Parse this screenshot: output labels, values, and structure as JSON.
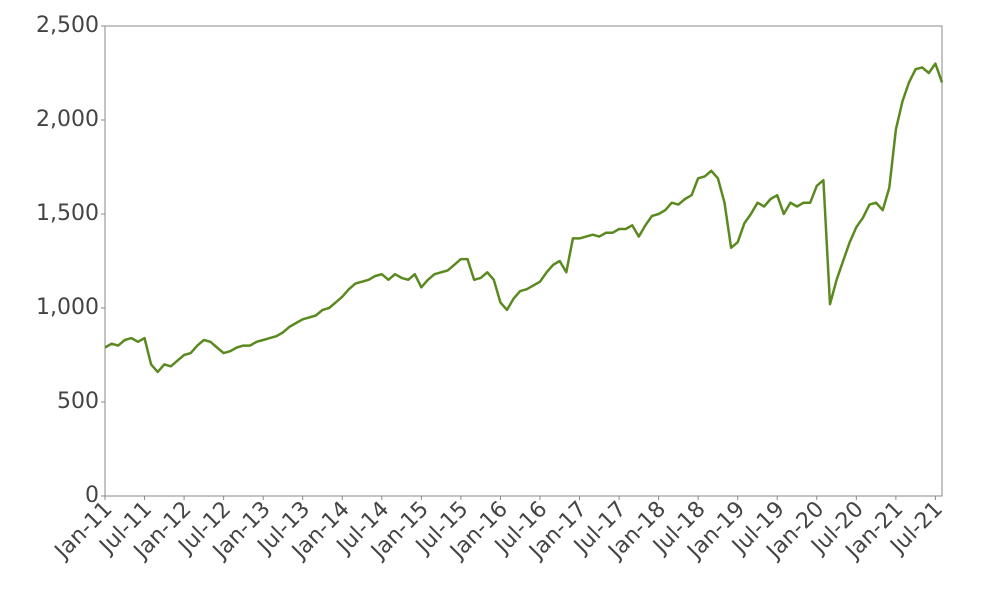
{
  "chart_data": {
    "type": "line",
    "x": [
      "2011-01",
      "2011-02",
      "2011-03",
      "2011-04",
      "2011-05",
      "2011-06",
      "2011-07",
      "2011-08",
      "2011-09",
      "2011-10",
      "2011-11",
      "2011-12",
      "2012-01",
      "2012-02",
      "2012-03",
      "2012-04",
      "2012-05",
      "2012-06",
      "2012-07",
      "2012-08",
      "2012-09",
      "2012-10",
      "2012-11",
      "2012-12",
      "2013-01",
      "2013-02",
      "2013-03",
      "2013-04",
      "2013-05",
      "2013-06",
      "2013-07",
      "2013-08",
      "2013-09",
      "2013-10",
      "2013-11",
      "2013-12",
      "2014-01",
      "2014-02",
      "2014-03",
      "2014-04",
      "2014-05",
      "2014-06",
      "2014-07",
      "2014-08",
      "2014-09",
      "2014-10",
      "2014-11",
      "2014-12",
      "2015-01",
      "2015-02",
      "2015-03",
      "2015-04",
      "2015-05",
      "2015-06",
      "2015-07",
      "2015-08",
      "2015-09",
      "2015-10",
      "2015-11",
      "2015-12",
      "2016-01",
      "2016-02",
      "2016-03",
      "2016-04",
      "2016-05",
      "2016-06",
      "2016-07",
      "2016-08",
      "2016-09",
      "2016-10",
      "2016-11",
      "2016-12",
      "2017-01",
      "2017-02",
      "2017-03",
      "2017-04",
      "2017-05",
      "2017-06",
      "2017-07",
      "2017-08",
      "2017-09",
      "2017-10",
      "2017-11",
      "2017-12",
      "2018-01",
      "2018-02",
      "2018-03",
      "2018-04",
      "2018-05",
      "2018-06",
      "2018-07",
      "2018-08",
      "2018-09",
      "2018-10",
      "2018-11",
      "2018-12",
      "2019-01",
      "2019-02",
      "2019-03",
      "2019-04",
      "2019-05",
      "2019-06",
      "2019-07",
      "2019-08",
      "2019-09",
      "2019-10",
      "2019-11",
      "2019-12",
      "2020-01",
      "2020-02",
      "2020-03",
      "2020-04",
      "2020-05",
      "2020-06",
      "2020-07",
      "2020-08",
      "2020-09",
      "2020-10",
      "2020-11",
      "2020-12",
      "2021-01",
      "2021-02",
      "2021-03",
      "2021-04",
      "2021-05",
      "2021-06",
      "2021-07",
      "2021-08"
    ],
    "series": [
      {
        "color": "#5a8a1f",
        "values": [
          790,
          810,
          800,
          830,
          840,
          820,
          840,
          700,
          660,
          700,
          690,
          720,
          750,
          760,
          800,
          830,
          820,
          790,
          760,
          770,
          790,
          800,
          800,
          820,
          830,
          840,
          850,
          870,
          900,
          920,
          940,
          950,
          960,
          990,
          1000,
          1030,
          1060,
          1100,
          1130,
          1140,
          1150,
          1170,
          1180,
          1150,
          1180,
          1160,
          1150,
          1180,
          1110,
          1150,
          1180,
          1190,
          1200,
          1230,
          1260,
          1260,
          1150,
          1160,
          1190,
          1150,
          1030,
          990,
          1050,
          1090,
          1100,
          1120,
          1140,
          1190,
          1230,
          1250,
          1190,
          1370,
          1370,
          1380,
          1390,
          1380,
          1400,
          1400,
          1420,
          1420,
          1440,
          1380,
          1440,
          1490,
          1500,
          1520,
          1560,
          1550,
          1580,
          1600,
          1690,
          1700,
          1730,
          1690,
          1560,
          1320,
          1350,
          1450,
          1500,
          1560,
          1540,
          1580,
          1600,
          1500,
          1560,
          1540,
          1560,
          1560,
          1650,
          1680,
          1020,
          1150,
          1250,
          1350,
          1430,
          1480,
          1550,
          1560,
          1520,
          1640,
          1950,
          2100,
          2200,
          2270,
          2280,
          2250,
          2300,
          2200
        ]
      }
    ],
    "xlim": [
      "2011-01",
      "2021-08"
    ],
    "xticks": [
      {
        "value": "2011-01",
        "label": "Jan-11"
      },
      {
        "value": "2011-07",
        "label": "Jul-11"
      },
      {
        "value": "2012-01",
        "label": "Jan-12"
      },
      {
        "value": "2012-07",
        "label": "Jul-12"
      },
      {
        "value": "2013-01",
        "label": "Jan-13"
      },
      {
        "value": "2013-07",
        "label": "Jul-13"
      },
      {
        "value": "2014-01",
        "label": "Jan-14"
      },
      {
        "value": "2014-07",
        "label": "Jul-14"
      },
      {
        "value": "2015-01",
        "label": "Jan-15"
      },
      {
        "value": "2015-07",
        "label": "Jul-15"
      },
      {
        "value": "2016-01",
        "label": "Jan-16"
      },
      {
        "value": "2016-07",
        "label": "Jul-16"
      },
      {
        "value": "2017-01",
        "label": "Jan-17"
      },
      {
        "value": "2017-07",
        "label": "Jul-17"
      },
      {
        "value": "2018-01",
        "label": "Jan-18"
      },
      {
        "value": "2018-07",
        "label": "Jul-18"
      },
      {
        "value": "2019-01",
        "label": "Jan-19"
      },
      {
        "value": "2019-07",
        "label": "Jul-19"
      },
      {
        "value": "2020-01",
        "label": "Jan-20"
      },
      {
        "value": "2020-07",
        "label": "Jul-20"
      },
      {
        "value": "2021-01",
        "label": "Jan-21"
      },
      {
        "value": "2021-07",
        "label": "Jul-21"
      }
    ],
    "ylim": [
      0,
      2500
    ],
    "yticks": [
      0,
      500,
      {
        "value": 1000,
        "label": "1,000"
      },
      {
        "value": 1500,
        "label": "1,500"
      },
      {
        "value": 2000,
        "label": "2,000"
      },
      {
        "value": 2500,
        "label": "2,500"
      }
    ],
    "grid": false
  }
}
